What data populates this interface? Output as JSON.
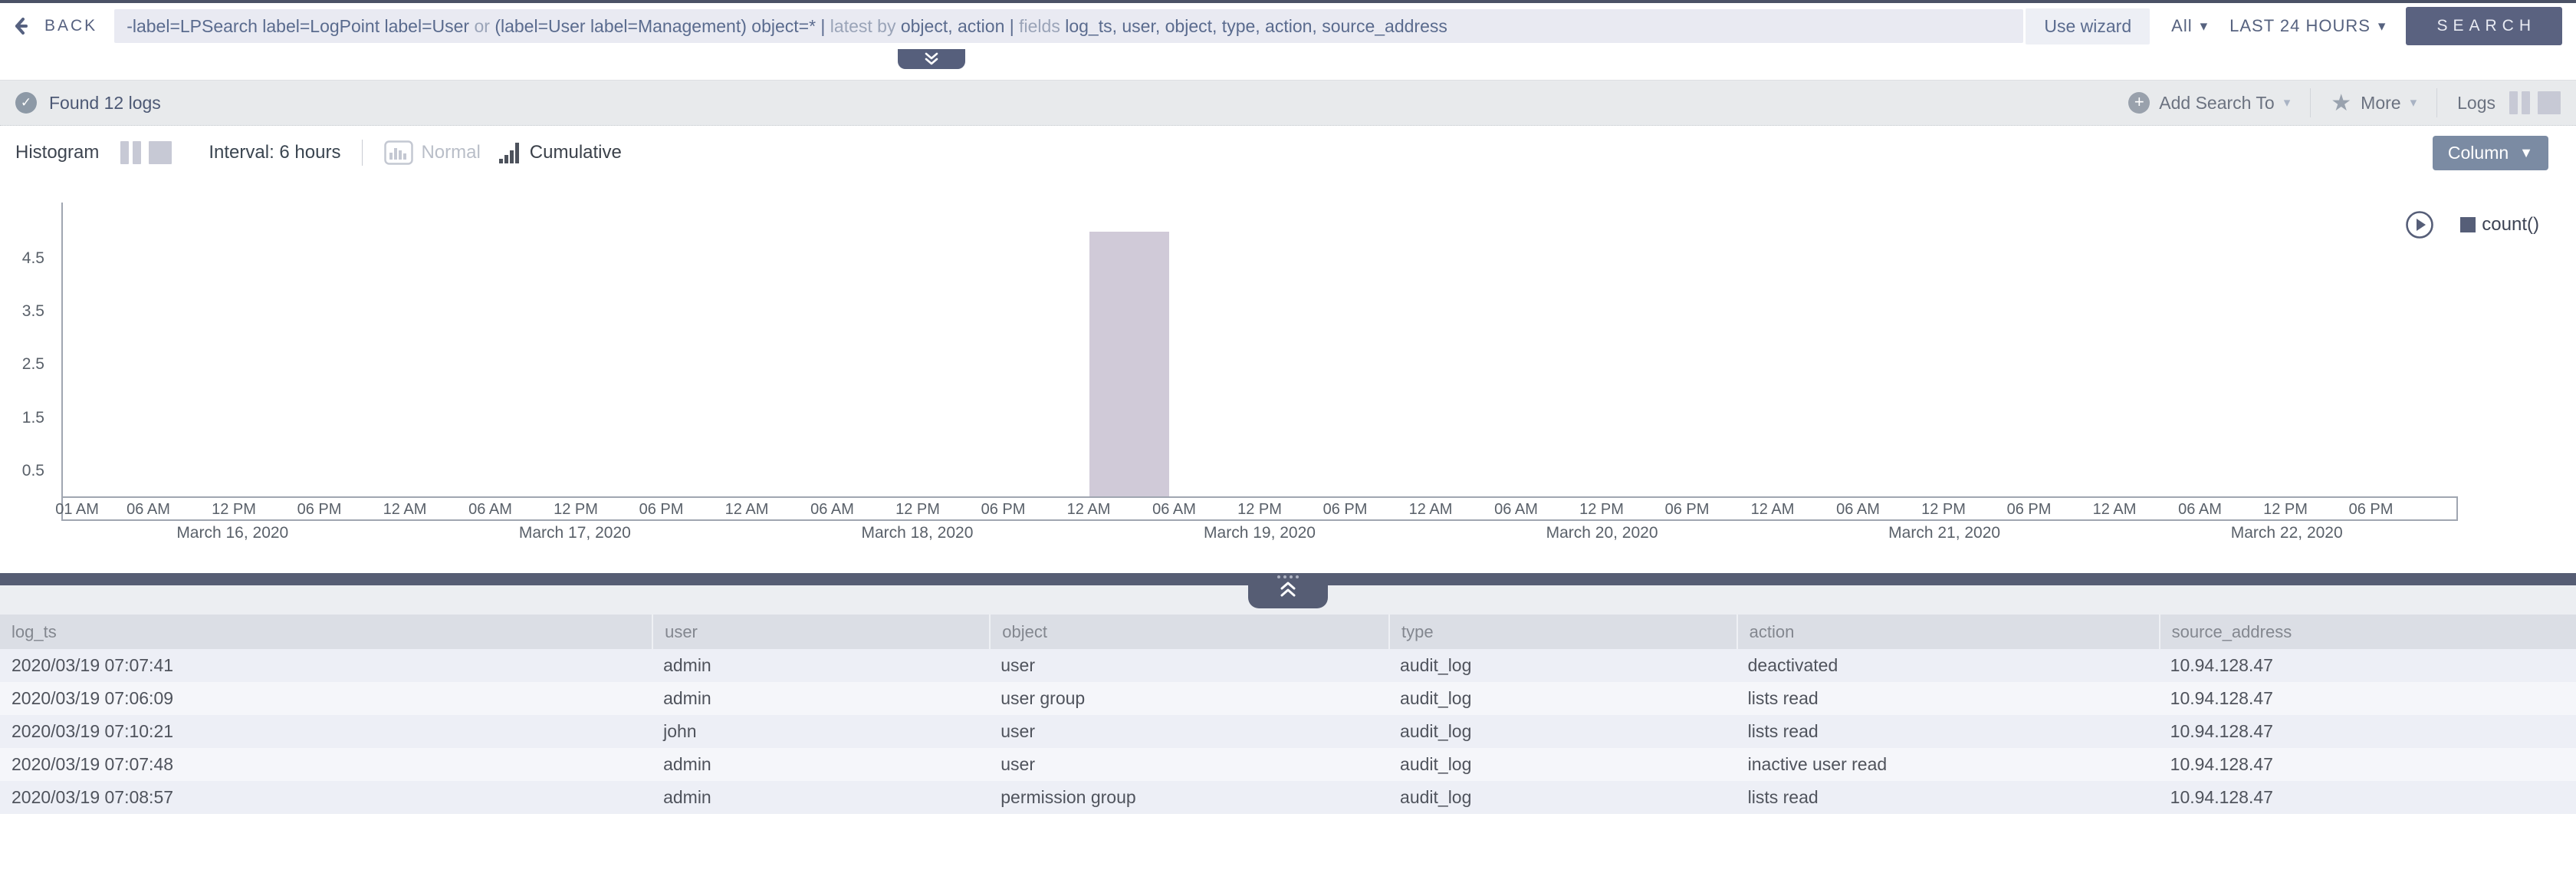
{
  "topbar": {
    "back_label": "BACK",
    "query_segments": [
      {
        "text": "-label=LPSearch label=LogPoint label=User ",
        "muted": false
      },
      {
        "text": "or ",
        "muted": true
      },
      {
        "text": "(label=User label=Management) object=* ",
        "muted": false
      },
      {
        "text": "| ",
        "muted": false
      },
      {
        "text": "latest by ",
        "muted": true
      },
      {
        "text": "object, action ",
        "muted": false
      },
      {
        "text": "| ",
        "muted": false
      },
      {
        "text": "fields ",
        "muted": true
      },
      {
        "text": "log_ts, user, object, type, action, source_address",
        "muted": false
      }
    ],
    "use_wizard_label": "Use wizard",
    "repo_selected": "All",
    "time_range": "LAST 24 HOURS",
    "search_label": "SEARCH"
  },
  "results_bar": {
    "found_text": "Found 12 logs",
    "add_search_to_label": "Add Search To",
    "more_label": "More",
    "logs_label": "Logs"
  },
  "chart_controls": {
    "histogram_label": "Histogram",
    "interval_label": "Interval: 6 hours",
    "normal_label": "Normal",
    "cumulative_label": "Cumulative",
    "column_button_label": "Column"
  },
  "chart_data": {
    "type": "bar",
    "title": "Search results histogram",
    "legend": [
      {
        "name": "count()",
        "color": "#565e78"
      }
    ],
    "bar_color": "#d0cad8",
    "grid": false,
    "y_ticks": [
      0.5,
      1.5,
      2.5,
      3.5,
      4.5
    ],
    "y_max": 5.55,
    "x_range_hours": 168,
    "x_start": "March 16, 2020 12:00 AM",
    "interval_hours": 6,
    "x_ticks": [
      {
        "label": "01 AM",
        "hour": 1
      },
      {
        "label": "06 AM",
        "hour": 6
      },
      {
        "label": "12 PM",
        "hour": 12
      },
      {
        "label": "06 PM",
        "hour": 18
      },
      {
        "label": "12 AM",
        "hour": 24
      },
      {
        "label": "06 AM",
        "hour": 30
      },
      {
        "label": "12 PM",
        "hour": 36
      },
      {
        "label": "06 PM",
        "hour": 42
      },
      {
        "label": "12 AM",
        "hour": 48
      },
      {
        "label": "06 AM",
        "hour": 54
      },
      {
        "label": "12 PM",
        "hour": 60
      },
      {
        "label": "06 PM",
        "hour": 66
      },
      {
        "label": "12 AM",
        "hour": 72
      },
      {
        "label": "06 AM",
        "hour": 78
      },
      {
        "label": "12 PM",
        "hour": 84
      },
      {
        "label": "06 PM",
        "hour": 90
      },
      {
        "label": "12 AM",
        "hour": 96
      },
      {
        "label": "06 AM",
        "hour": 102
      },
      {
        "label": "12 PM",
        "hour": 108
      },
      {
        "label": "06 PM",
        "hour": 114
      },
      {
        "label": "12 AM",
        "hour": 120
      },
      {
        "label": "06 AM",
        "hour": 126
      },
      {
        "label": "12 PM",
        "hour": 132
      },
      {
        "label": "06 PM",
        "hour": 138
      },
      {
        "label": "12 AM",
        "hour": 144
      },
      {
        "label": "06 AM",
        "hour": 150
      },
      {
        "label": "12 PM",
        "hour": 156
      },
      {
        "label": "06 PM",
        "hour": 162
      }
    ],
    "date_labels": [
      {
        "label": "March 16, 2020",
        "hour": 12
      },
      {
        "label": "March 17, 2020",
        "hour": 36
      },
      {
        "label": "March 18, 2020",
        "hour": 60
      },
      {
        "label": "March 19, 2020",
        "hour": 84
      },
      {
        "label": "March 20, 2020",
        "hour": 108
      },
      {
        "label": "March 21, 2020",
        "hour": 132
      },
      {
        "label": "March 22, 2020",
        "hour": 156
      }
    ],
    "bars": [
      {
        "start_hour": 72,
        "span_hours": 5.6,
        "value": 5,
        "bucket": "March 19, 2020 12 AM - 06 AM"
      }
    ]
  },
  "table": {
    "columns": [
      "log_ts",
      "user",
      "object",
      "type",
      "action",
      "source_address"
    ],
    "col_widths": [
      25.3,
      13.1,
      15.5,
      13.5,
      16.4,
      16.2
    ],
    "rows": [
      [
        "2020/03/19 07:07:41",
        "admin",
        "user",
        "audit_log",
        "deactivated",
        "10.94.128.47"
      ],
      [
        "2020/03/19 07:06:09",
        "admin",
        "user group",
        "audit_log",
        "lists read",
        "10.94.128.47"
      ],
      [
        "2020/03/19 07:10:21",
        "john",
        "user",
        "audit_log",
        "lists read",
        "10.94.128.47"
      ],
      [
        "2020/03/19 07:07:48",
        "admin",
        "user",
        "audit_log",
        "inactive user read",
        "10.94.128.47"
      ],
      [
        "2020/03/19 07:08:57",
        "admin",
        "permission group",
        "audit_log",
        "lists read",
        "10.94.128.47"
      ]
    ]
  }
}
